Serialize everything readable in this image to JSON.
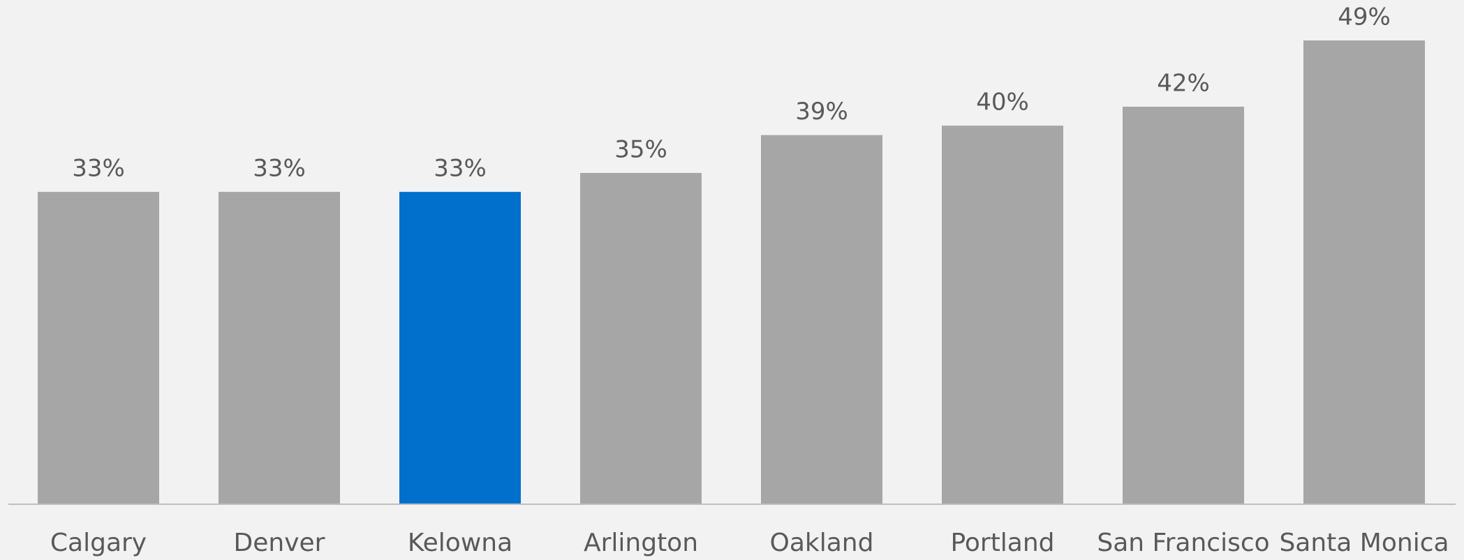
{
  "chart_data": {
    "type": "bar",
    "categories": [
      "Calgary",
      "Denver",
      "Kelowna",
      "Arlington",
      "Oakland",
      "Portland",
      "San Francisco",
      "Santa Monica"
    ],
    "values": [
      33,
      33,
      33,
      35,
      39,
      40,
      42,
      49
    ],
    "value_labels": [
      "33%",
      "33%",
      "33%",
      "35%",
      "39%",
      "40%",
      "42%",
      "49%"
    ],
    "colors": [
      "#a6a6a6",
      "#a6a6a6",
      "#0070cc",
      "#a6a6a6",
      "#a6a6a6",
      "#a6a6a6",
      "#a6a6a6",
      "#a6a6a6"
    ]
  }
}
